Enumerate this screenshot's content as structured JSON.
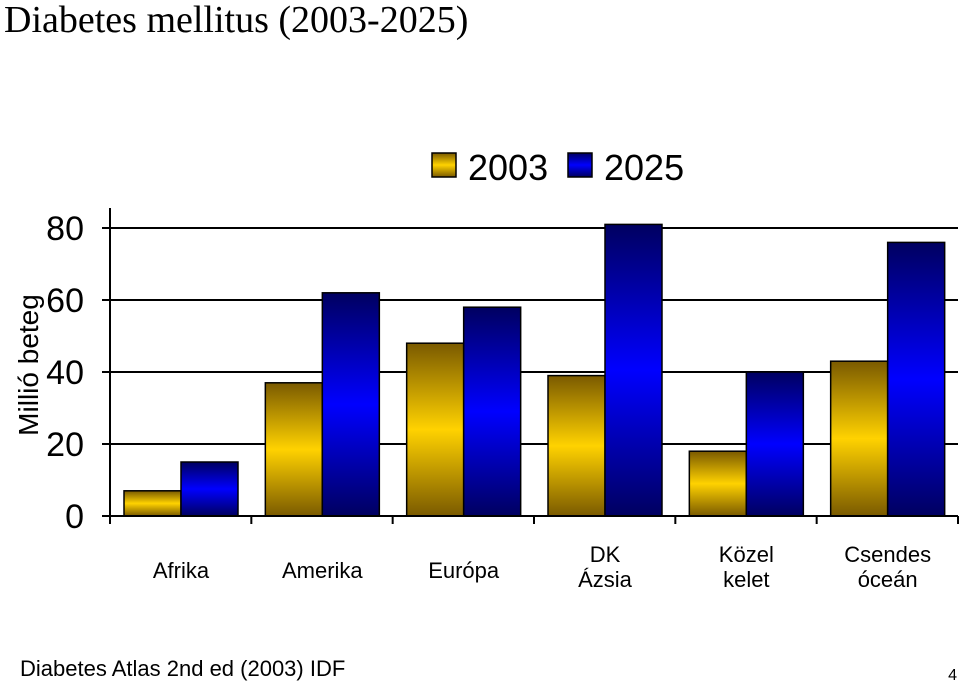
{
  "page": {
    "title": "Diabetes mellitus (2003-2025)",
    "footer": "Diabetes Atlas 2nd ed (2003) IDF",
    "page_number": "4"
  },
  "colors": {
    "series_2003": [
      "#7a5a00",
      "#ffd200"
    ],
    "series_2025": [
      "#000060",
      "#0000ff"
    ],
    "axis": "#000000",
    "grid": "#000000"
  },
  "chart_data": {
    "type": "bar",
    "title": "",
    "ylabel": "Millió beteg",
    "xlabel": "",
    "ylim": [
      0,
      80
    ],
    "yticks": [
      0,
      20,
      40,
      60,
      80
    ],
    "grid": true,
    "legend_position": "top",
    "categories": [
      [
        "Afrika"
      ],
      [
        "Amerika"
      ],
      [
        "Európa"
      ],
      [
        "DK",
        "Ázsia"
      ],
      [
        "Közel",
        "kelet"
      ],
      [
        "Csendes",
        "óceán"
      ]
    ],
    "series": [
      {
        "name": "2003",
        "values": [
          7,
          37,
          48,
          39,
          18,
          43
        ]
      },
      {
        "name": "2025",
        "values": [
          15,
          62,
          58,
          81,
          40,
          76
        ]
      }
    ]
  }
}
